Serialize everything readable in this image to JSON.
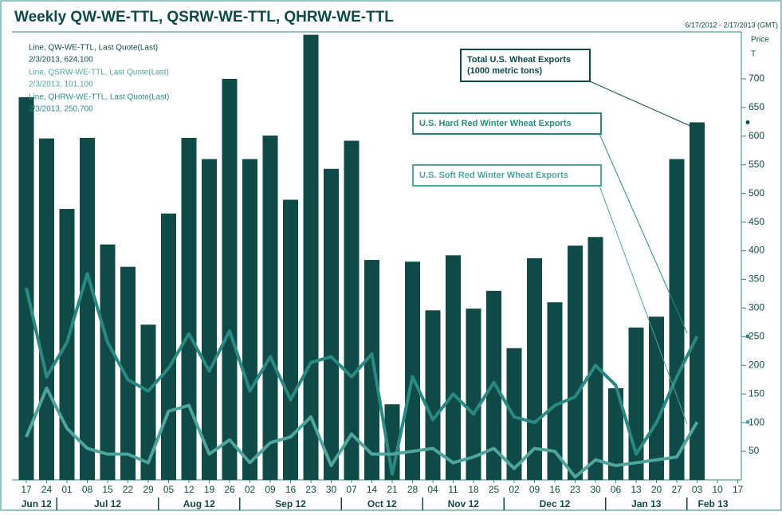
{
  "chart_data": {
    "type": "bar",
    "title": "Weekly QW-WE-TTL, QSRW-WE-TTL, QHRW-WE-TTL",
    "date_range": "6/17/2012 - 2/17/2013 (GMT)",
    "y_axis_label": "Price",
    "y_axis_unit": "T",
    "legend": [
      {
        "name": "Line, QW-WE-TTL, Last Quote(Last)",
        "quote": "2/3/2013, 624.100"
      },
      {
        "name": "Line, QSRW-WE-TTL, Last Quote(Last)",
        "quote": "2/3/2013, 101.100"
      },
      {
        "name": "Line, QHRW-WE-TTL, Last Quote(Last)",
        "quote": "2/3/2013, 250.700"
      }
    ],
    "annotations": [
      {
        "lines": [
          "Total U.S. Wheat Exports",
          "(1000 metric tons)"
        ]
      },
      {
        "lines": [
          "U.S. Hard Red Winter Wheat Exports"
        ]
      },
      {
        "lines": [
          "U.S. Soft Red Winter Wheat Exports"
        ]
      }
    ],
    "categories": [
      "17",
      "24",
      "01",
      "08",
      "15",
      "22",
      "29",
      "05",
      "12",
      "19",
      "26",
      "02",
      "09",
      "16",
      "23",
      "30",
      "07",
      "14",
      "21",
      "28",
      "04",
      "11",
      "18",
      "25",
      "02",
      "09",
      "16",
      "23",
      "30",
      "06",
      "13",
      "20",
      "27",
      "03",
      "10",
      "17"
    ],
    "months": [
      "Jun 12",
      "Jul 12",
      "Aug 12",
      "Sep 12",
      "Oct 12",
      "Nov 12",
      "Dec 12",
      "Jan 13",
      "Feb 13"
    ],
    "series": [
      {
        "name": "QW-WE-TTL",
        "kind": "bar",
        "color": "#0f4a46",
        "values": [
          668,
          596,
          473,
          597,
          411,
          372,
          271,
          465,
          597,
          560,
          700,
          560,
          601,
          489,
          777,
          543,
          592,
          384,
          132,
          381,
          296,
          392,
          299,
          330,
          230,
          387,
          310,
          409,
          424,
          160,
          266,
          285,
          560,
          624.1,
          null,
          null
        ]
      },
      {
        "name": "QHRW-WE-TTL",
        "kind": "line",
        "color": "#2b8983",
        "values": [
          335,
          180,
          240,
          360,
          240,
          175,
          155,
          195,
          255,
          190,
          260,
          155,
          215,
          140,
          205,
          215,
          180,
          220,
          10,
          180,
          105,
          150,
          115,
          170,
          110,
          100,
          130,
          145,
          200,
          165,
          45,
          100,
          180,
          250.7,
          null,
          null
        ]
      },
      {
        "name": "QSRW-WE-TTL",
        "kind": "line",
        "color": "#4fa59e",
        "values": [
          75,
          160,
          90,
          55,
          45,
          45,
          30,
          120,
          130,
          45,
          70,
          30,
          65,
          75,
          110,
          25,
          80,
          45,
          45,
          50,
          55,
          30,
          40,
          55,
          20,
          55,
          50,
          5,
          35,
          25,
          30,
          35,
          40,
          101.1,
          null,
          null
        ]
      }
    ],
    "ylim": [
      0,
      782
    ],
    "yticks": [
      50,
      100,
      150,
      200,
      250,
      300,
      350,
      400,
      450,
      500,
      550,
      600,
      650,
      700
    ]
  }
}
